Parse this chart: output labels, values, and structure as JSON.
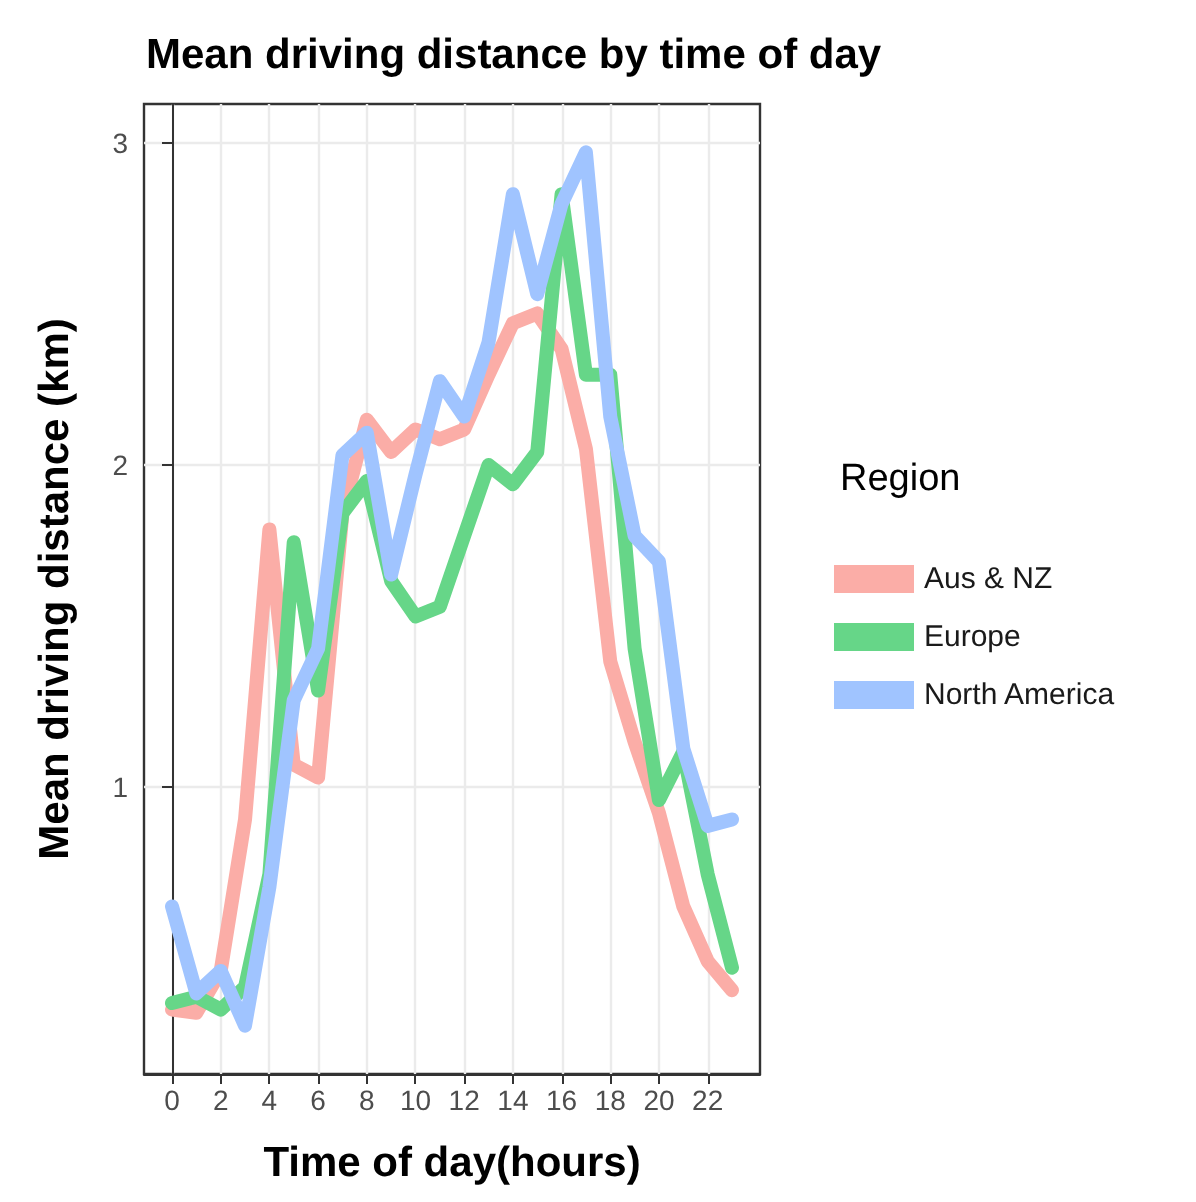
{
  "chart_data": {
    "type": "line",
    "title": "Mean driving distance by time of day",
    "xlabel": "Time of day(hours)",
    "ylabel": "Mean driving distance (km)",
    "legend_title": "Region",
    "x": [
      0,
      1,
      2,
      3,
      4,
      5,
      6,
      7,
      8,
      9,
      10,
      11,
      12,
      13,
      14,
      15,
      16,
      17,
      18,
      19,
      20,
      21,
      22,
      23
    ],
    "series": [
      {
        "name": "Aus & NZ",
        "color": "#fbada7",
        "values": [
          0.31,
          0.3,
          0.43,
          0.9,
          1.8,
          1.07,
          1.03,
          1.85,
          2.14,
          2.04,
          2.11,
          2.08,
          2.11,
          2.28,
          2.44,
          2.47,
          2.36,
          2.05,
          1.39,
          1.14,
          0.92,
          0.63,
          0.46,
          0.37
        ]
      },
      {
        "name": "Europe",
        "color": "#66d688",
        "values": [
          0.33,
          0.35,
          0.31,
          0.38,
          0.73,
          1.76,
          1.3,
          1.85,
          1.95,
          1.64,
          1.53,
          1.56,
          1.78,
          2.0,
          1.94,
          2.04,
          2.84,
          2.28,
          2.28,
          1.43,
          0.96,
          1.11,
          0.73,
          0.44
        ]
      },
      {
        "name": "North America",
        "color": "#a0c4ff",
        "values": [
          0.63,
          0.36,
          0.43,
          0.26,
          0.69,
          1.27,
          1.43,
          2.03,
          2.1,
          1.66,
          1.97,
          2.26,
          2.15,
          2.38,
          2.84,
          2.53,
          2.81,
          2.97,
          2.15,
          1.78,
          1.7,
          1.12,
          0.88,
          0.9
        ]
      }
    ],
    "xlim": [
      -1.15,
      24.15
    ],
    "xticks": [
      0,
      2,
      4,
      6,
      8,
      10,
      12,
      14,
      16,
      18,
      20,
      22
    ],
    "ylim": [
      0.11,
      3.12
    ],
    "yticks": [
      1,
      2,
      3
    ],
    "grid": true,
    "legend": "right",
    "marker": "none",
    "line_style": "solid"
  }
}
